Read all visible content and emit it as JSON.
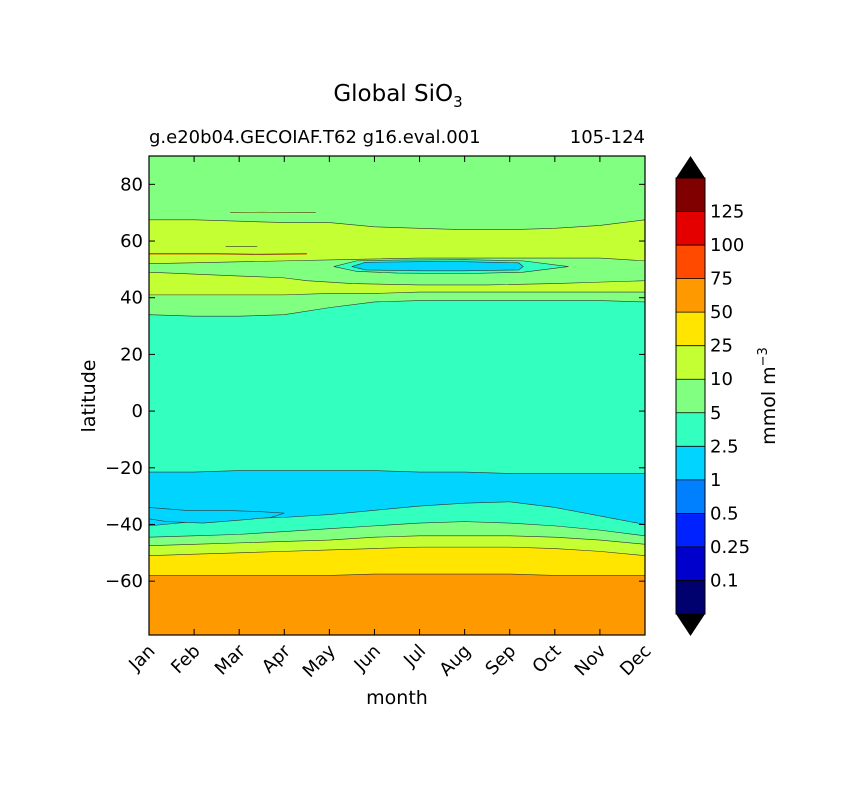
{
  "chart_data": {
    "type": "contourf",
    "title": "Global SiO",
    "title_subscript": "3",
    "subtitle_left": "g.e20b04.GECOIAF.T62 g16.eval.001",
    "subtitle_right": "105-124",
    "xlabel": "month",
    "ylabel": "latitude",
    "x_categories": [
      "Jan",
      "Feb",
      "Mar",
      "Apr",
      "May",
      "Jun",
      "Jul",
      "Aug",
      "Sep",
      "Oct",
      "Nov",
      "Dec"
    ],
    "x_range": [
      0,
      11
    ],
    "ylim": [
      -79,
      90
    ],
    "y_ticks": [
      80,
      60,
      40,
      20,
      0,
      -20,
      -40,
      -60
    ],
    "y_tick_labels": [
      "80",
      "60",
      "40",
      "20",
      "0",
      "−20",
      "−40",
      "−60"
    ],
    "colorbar": {
      "label": "mmol m",
      "label_exponent": "−3",
      "levels": [
        "0.1",
        "0.25",
        "0.5",
        "1",
        "2.5",
        "5",
        "10",
        "25",
        "50",
        "75",
        "100",
        "125"
      ],
      "colors": [
        "#00006f",
        "#0000cc",
        "#0022ff",
        "#0080ff",
        "#00d4ff",
        "#33ffbf",
        "#80ff80",
        "#c4ff33",
        "#ffe500",
        "#ff9900",
        "#ff4a00",
        "#e50000",
        "#800000"
      ],
      "extend_low_color": "#000000",
      "extend_high_color": "#000000"
    },
    "bands": [
      {
        "level_index": 9,
        "comment": "50-75",
        "upper_lat": [
          -58,
          -58,
          -58,
          -58,
          -58,
          -57.5,
          -57.5,
          -57.5,
          -57.5,
          -58,
          -58,
          -58
        ]
      },
      {
        "level_index": 8,
        "comment": "25-50",
        "upper_lat": [
          -51,
          -50.5,
          -50,
          -49.5,
          -49,
          -48.5,
          -48,
          -48,
          -48,
          -48.5,
          -49.5,
          -51
        ]
      },
      {
        "level_index": 7,
        "comment": "10-25",
        "upper_lat": [
          -47.5,
          -47,
          -46.5,
          -46,
          -45.5,
          -44.5,
          -44,
          -44,
          -44,
          -44.5,
          -45.5,
          -47
        ]
      },
      {
        "level_index": 6,
        "comment": "5-10",
        "upper_lat": [
          -44.5,
          -44,
          -43.5,
          -42.5,
          -41.5,
          -40.5,
          -39.5,
          -39,
          -39.5,
          -40.5,
          -42,
          -44
        ]
      },
      {
        "level_index": 5,
        "comment": "2.5-5",
        "upper_lat": [
          -40.5,
          -39,
          -38,
          -37.5,
          -36.5,
          -35,
          -33.5,
          -32.5,
          -32,
          -34,
          -37,
          -40
        ]
      },
      {
        "level_index": 4,
        "comment": "1-2.5",
        "upper_lat": [
          -21.5,
          -21.5,
          -21,
          -21,
          -21,
          -21,
          -21.5,
          -21.5,
          -22,
          -22,
          -22,
          -22
        ]
      },
      {
        "level_index": 5,
        "comment": "2.5-5",
        "upper_lat": [
          34,
          33.5,
          33.5,
          34,
          36.5,
          38.5,
          39,
          39,
          39,
          39,
          39,
          38.5
        ]
      },
      {
        "level_index": 6,
        "comment": "5-10",
        "upper_lat": [
          41,
          41,
          41,
          41,
          41.5,
          41.5,
          42,
          42,
          42,
          42,
          42,
          42
        ]
      },
      {
        "level_index": 7,
        "comment": "10-25",
        "upper_lat": [
          67.5,
          67.5,
          67,
          66.5,
          66.5,
          65,
          64.5,
          64,
          64,
          64.5,
          65.5,
          67.5
        ]
      },
      {
        "level_index": 6,
        "comment": "5-10",
        "upper_lat": [
          90,
          90,
          90,
          90,
          90,
          90,
          90,
          90,
          90,
          90,
          90,
          90
        ]
      }
    ],
    "islands": [
      {
        "level_index": 6,
        "comment": "5-10 patch",
        "points": [
          [
            0,
            52
          ],
          [
            1.5,
            52.5
          ],
          [
            3,
            53
          ],
          [
            4.5,
            53.5
          ],
          [
            6,
            54
          ],
          [
            7.5,
            54
          ],
          [
            9,
            54
          ],
          [
            10,
            54
          ],
          [
            11,
            53
          ],
          [
            11,
            46
          ],
          [
            10,
            45.5
          ],
          [
            9,
            45
          ],
          [
            7.5,
            44.5
          ],
          [
            6,
            44.5
          ],
          [
            4.5,
            45
          ],
          [
            3.5,
            46
          ],
          [
            3,
            47
          ],
          [
            1.5,
            48
          ],
          [
            0,
            49
          ]
        ]
      },
      {
        "level_index": 5,
        "comment": "2.5-5 patch",
        "points": [
          [
            4.1,
            51
          ],
          [
            4.6,
            53
          ],
          [
            5.5,
            53.3
          ],
          [
            7,
            53.4
          ],
          [
            8.3,
            53
          ],
          [
            9.3,
            51
          ],
          [
            8.3,
            49
          ],
          [
            7,
            48.5
          ],
          [
            5.5,
            48.7
          ],
          [
            4.6,
            49.3
          ]
        ]
      },
      {
        "level_index": 4,
        "comment": "1-2.5 patch",
        "points": [
          [
            4.5,
            51
          ],
          [
            4.8,
            52.5
          ],
          [
            6,
            52.7
          ],
          [
            7,
            52.7
          ],
          [
            8.2,
            52.3
          ],
          [
            8.3,
            51
          ],
          [
            8.2,
            49.8
          ],
          [
            7,
            49.5
          ],
          [
            6,
            49.5
          ],
          [
            4.8,
            49.8
          ]
        ]
      },
      {
        "level_index": 4,
        "comment": "1-2.5 tongue",
        "points": [
          [
            0,
            -34
          ],
          [
            0.8,
            -35
          ],
          [
            1.6,
            -35
          ],
          [
            2.5,
            -35.5
          ],
          [
            3,
            -36
          ],
          [
            2.7,
            -37.5
          ],
          [
            2,
            -38.5
          ],
          [
            1.2,
            -39.5
          ],
          [
            0.4,
            -39
          ],
          [
            0,
            -38
          ]
        ]
      }
    ],
    "lines": [
      {
        "level_index": 9,
        "points": [
          [
            0,
            55.5
          ],
          [
            1.5,
            55.5
          ],
          [
            2.5,
            55.3
          ],
          [
            3.5,
            55.5
          ]
        ]
      },
      {
        "level_index": 7,
        "points": [
          [
            1.8,
            70
          ],
          [
            2.5,
            70.2
          ],
          [
            3.3,
            70
          ],
          [
            3.7,
            70
          ]
        ]
      },
      {
        "level_index": 7,
        "points": [
          [
            1.7,
            58
          ],
          [
            2.4,
            58
          ]
        ]
      }
    ]
  }
}
